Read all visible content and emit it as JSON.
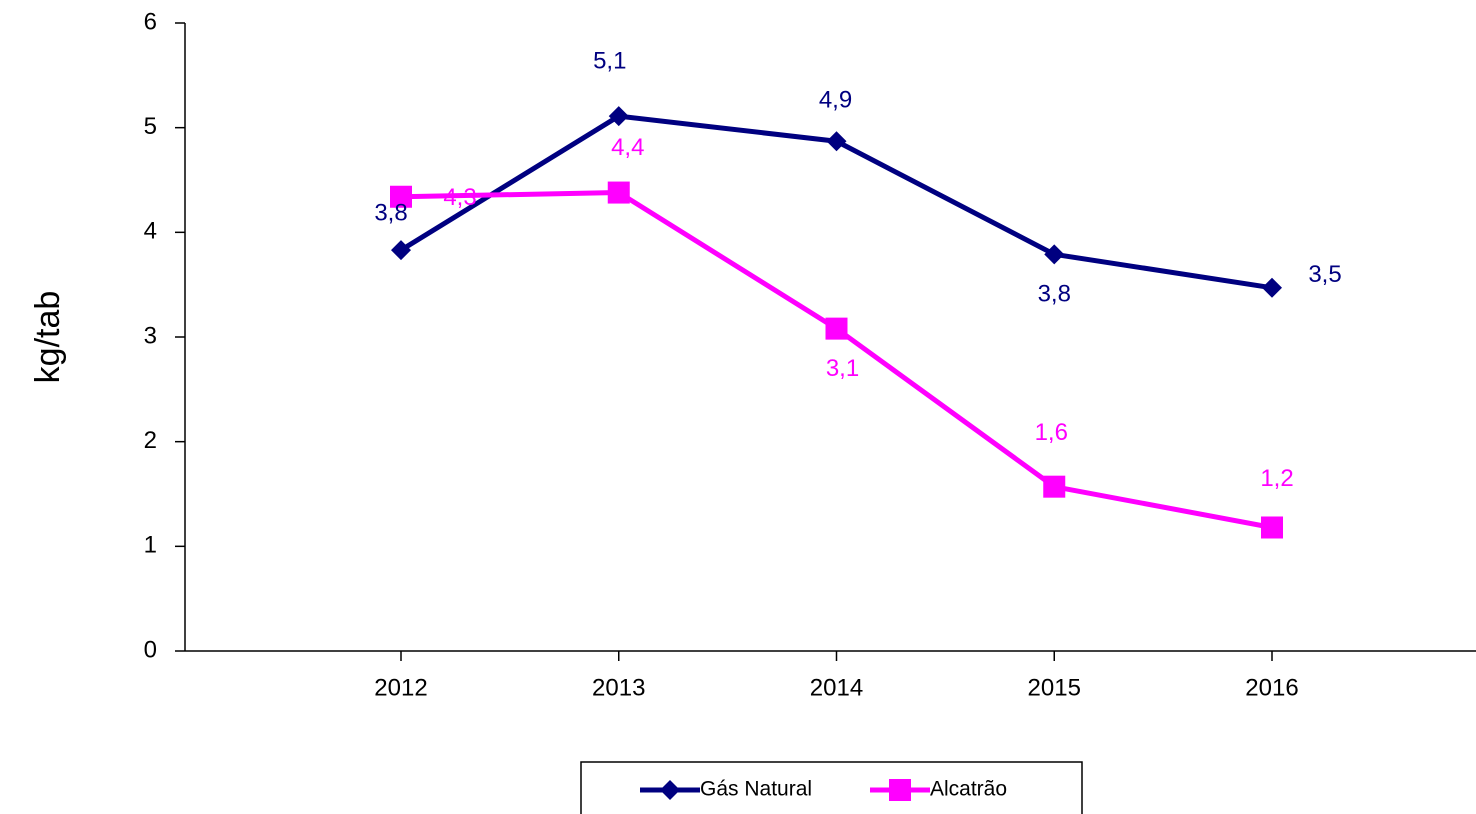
{
  "chart_data": {
    "type": "line",
    "y_label": "kg/tab",
    "categories": [
      "2012",
      "2013",
      "2014",
      "2015",
      "2016"
    ],
    "series": [
      {
        "name": "Gás Natural",
        "color": "#000080",
        "marker": "diamond",
        "values": [
          3.83,
          5.11,
          4.87,
          3.79,
          3.47
        ],
        "value_labels": [
          "3,8",
          "5,1",
          "4,9",
          "3,8",
          "3,5"
        ]
      },
      {
        "name": "Alcatrão",
        "color": "#ff00ff",
        "marker": "square",
        "values": [
          4.34,
          4.38,
          3.08,
          1.57,
          1.18
        ],
        "value_labels": [
          "4,3",
          "4,4",
          "3,1",
          "1,6",
          "1,2"
        ]
      }
    ],
    "ylim": [
      0,
      6
    ],
    "yticks": [
      0,
      1,
      2,
      3,
      4,
      5,
      6
    ],
    "grid": false,
    "legend": "bottom"
  }
}
